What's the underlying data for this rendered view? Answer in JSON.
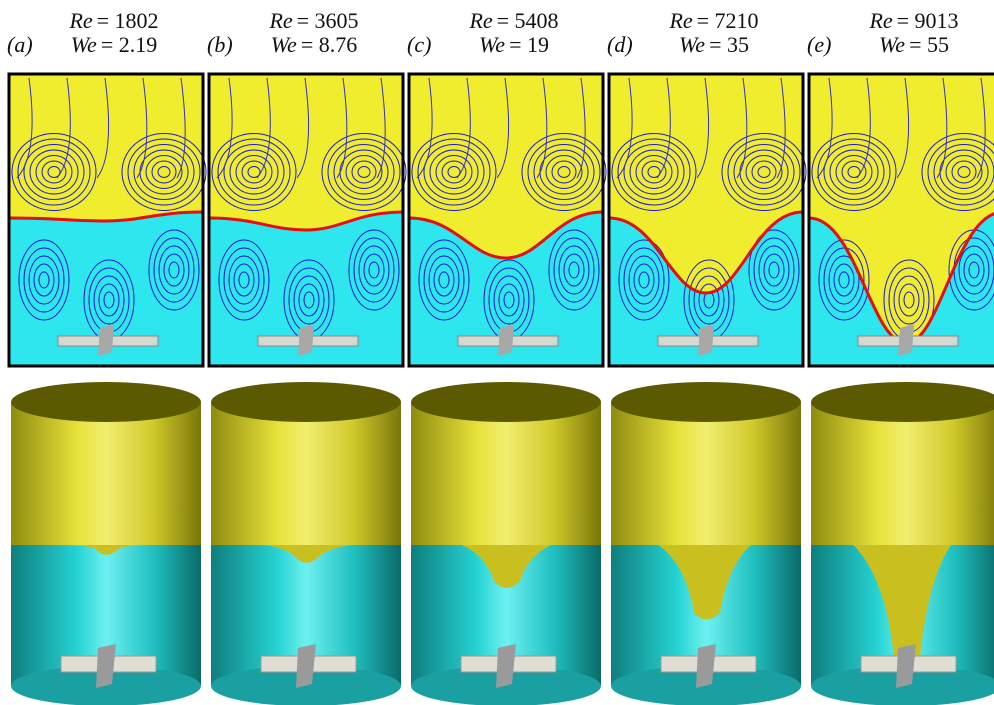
{
  "panels": [
    {
      "label": "(a)",
      "re": {
        "symbol": "Re",
        "value": "= 1802"
      },
      "we": {
        "symbol": "We",
        "value": "= 2.19"
      }
    },
    {
      "label": "(b)",
      "re": {
        "symbol": "Re",
        "value": "= 3605"
      },
      "we": {
        "symbol": "We",
        "value": "= 8.76"
      }
    },
    {
      "label": "(c)",
      "re": {
        "symbol": "Re",
        "value": "= 5408"
      },
      "we": {
        "symbol": "We",
        "value": "= 19"
      }
    },
    {
      "label": "(d)",
      "re": {
        "symbol": "Re",
        "value": "= 7210"
      },
      "we": {
        "symbol": "We",
        "value": "= 35"
      }
    },
    {
      "label": "(e)",
      "re": {
        "symbol": "Re",
        "value": "= 9013"
      },
      "we": {
        "symbol": "We",
        "value": "= 55"
      }
    }
  ]
}
